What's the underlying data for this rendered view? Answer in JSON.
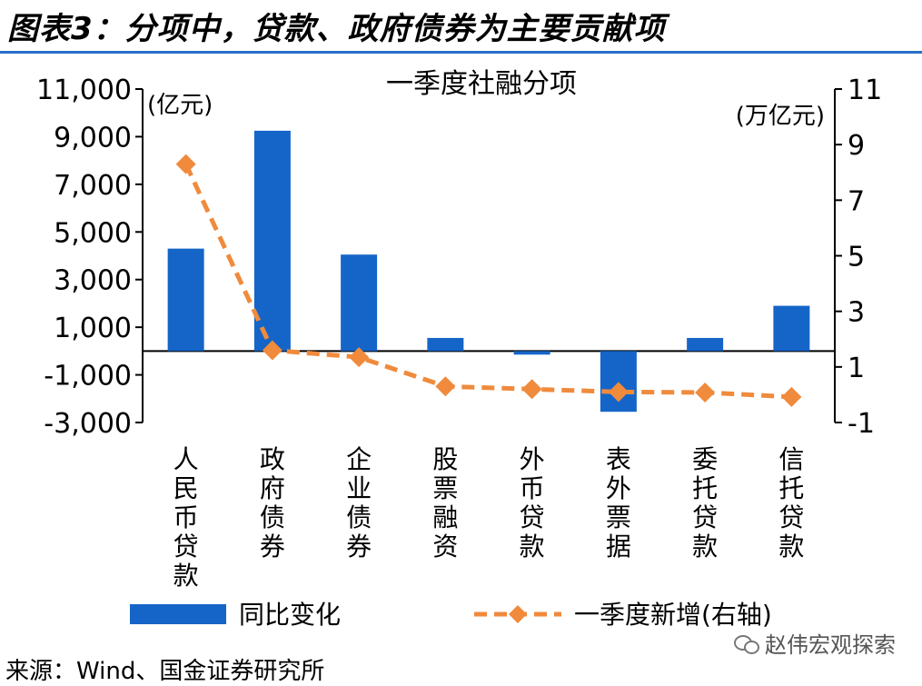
{
  "figure_title": "图表3：分项中，贷款、政府债券为主要贡献项",
  "source_note": "来源：Wind、国金证券研究所",
  "watermark": "赵伟宏观探索",
  "colors": {
    "bar": "#1565c8",
    "line": "#f08a3c",
    "rule": "#2a6fc9"
  },
  "chart_data": {
    "type": "bar+line",
    "title": "一季度社融分项",
    "categories": [
      "人民币贷款",
      "政府债券",
      "企业债券",
      "股票融资",
      "外币贷款",
      "表外票据",
      "委托贷款",
      "信托贷款"
    ],
    "left_axis": {
      "label": "(亿元)",
      "ylim": [
        -3000,
        11000
      ],
      "ticks": [
        "11,000",
        "9,000",
        "7,000",
        "5,000",
        "3,000",
        "1,000",
        "-1,000",
        "-3,000"
      ],
      "tick_values": [
        11000,
        9000,
        7000,
        5000,
        3000,
        1000,
        -1000,
        -3000
      ]
    },
    "right_axis": {
      "label": "(万亿元)",
      "ylim": [
        -1,
        11
      ],
      "ticks": [
        "11",
        "9",
        "7",
        "5",
        "3",
        "1",
        "-1"
      ],
      "tick_values": [
        11,
        9,
        7,
        5,
        3,
        1,
        -1
      ]
    },
    "series": [
      {
        "name": "同比变化",
        "type": "bar",
        "axis": "left",
        "values": [
          4300,
          9250,
          4050,
          550,
          -150,
          -2550,
          550,
          1900
        ]
      },
      {
        "name": "一季度新增(右轴)",
        "type": "line",
        "axis": "right",
        "values": [
          8.3,
          1.6,
          1.35,
          0.3,
          0.2,
          0.1,
          0.08,
          -0.08
        ]
      }
    ],
    "legend_position": "bottom"
  }
}
